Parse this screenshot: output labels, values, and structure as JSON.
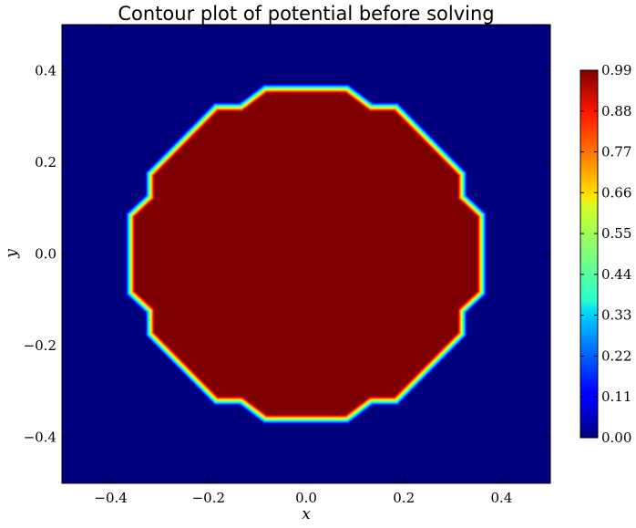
{
  "chart_data": {
    "type": "heatmap",
    "title": "Contour plot of potential before solving",
    "xlabel": "x",
    "ylabel": "y",
    "xlim": [
      -0.5,
      0.5
    ],
    "ylim": [
      -0.5,
      0.5
    ],
    "x_ticks": [
      -0.4,
      -0.2,
      0.0,
      0.2,
      0.4
    ],
    "y_ticks": [
      -0.4,
      -0.2,
      0.0,
      0.2,
      0.4
    ],
    "x_tick_labels": [
      "−0.4",
      "−0.2",
      "0.0",
      "0.2",
      "0.4"
    ],
    "y_tick_labels": [
      "−0.4",
      "−0.2",
      "0.0",
      "0.2",
      "0.4"
    ],
    "colormap": "jet",
    "colorbar": {
      "ticks": [
        0.0,
        0.11,
        0.22,
        0.33,
        0.44,
        0.55,
        0.66,
        0.77,
        0.88,
        0.99
      ],
      "tick_labels": [
        "0.00",
        "0.11",
        "0.22",
        "0.33",
        "0.44",
        "0.55",
        "0.66",
        "0.77",
        "0.88",
        "0.99"
      ],
      "min": 0.0,
      "max": 0.99
    },
    "region": {
      "inside_value": 0.99,
      "outside_value": 0.0,
      "boundary_points": [
        [
          -0.08,
          0.35
        ],
        [
          0.08,
          0.35
        ],
        [
          0.13,
          0.31
        ],
        [
          0.18,
          0.31
        ],
        [
          0.31,
          0.17
        ],
        [
          0.31,
          0.12
        ],
        [
          0.35,
          0.08
        ],
        [
          0.35,
          -0.08
        ],
        [
          0.31,
          -0.12
        ],
        [
          0.31,
          -0.17
        ],
        [
          0.18,
          -0.31
        ],
        [
          0.13,
          -0.31
        ],
        [
          0.08,
          -0.35
        ],
        [
          -0.08,
          -0.35
        ],
        [
          -0.13,
          -0.31
        ],
        [
          -0.18,
          -0.31
        ],
        [
          -0.31,
          -0.17
        ],
        [
          -0.31,
          -0.12
        ],
        [
          -0.35,
          -0.08
        ],
        [
          -0.35,
          0.08
        ],
        [
          -0.31,
          0.12
        ],
        [
          -0.31,
          0.17
        ],
        [
          -0.18,
          0.31
        ],
        [
          -0.13,
          0.31
        ]
      ]
    }
  },
  "colors": {
    "outside": "#00007f",
    "inside": "#7f0000"
  }
}
